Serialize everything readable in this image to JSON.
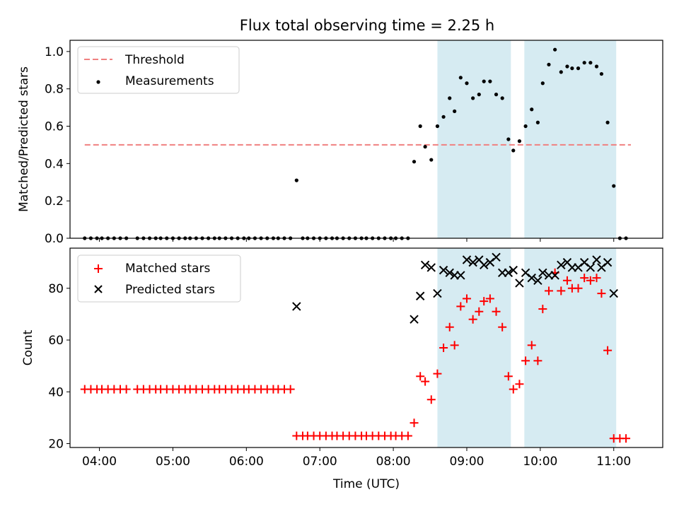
{
  "chart_data": {
    "type": "scatter",
    "title": "Flux total observing time = 2.25 h",
    "xlabel": "Time (UTC)",
    "xlim": [
      "03:36",
      "11:40"
    ],
    "x_ticks": [
      "04:00",
      "05:00",
      "06:00",
      "07:00",
      "08:00",
      "09:00",
      "10:00",
      "11:00"
    ],
    "shaded_intervals": [
      [
        "08:36",
        "09:36"
      ],
      [
        "09:47",
        "11:02"
      ]
    ],
    "shade_color": "#add8e6",
    "panels": [
      {
        "ylabel": "Matched/Predicted stars",
        "ylim": [
          0,
          1.06
        ],
        "y_ticks": [
          "0.0",
          "0.2",
          "0.4",
          "0.6",
          "0.8",
          "1.0"
        ],
        "legend_position": "top-left",
        "threshold": {
          "name": "Threshold",
          "value": 0.5,
          "x_range": [
            "03:48",
            "11:14"
          ],
          "color": "#f08080"
        },
        "series": [
          {
            "name": "Measurements",
            "marker": "dot",
            "color": "#000000",
            "points": [
              [
                "03:48",
                0.0
              ],
              [
                "03:53",
                0.0
              ],
              [
                "03:58",
                0.0
              ],
              [
                "04:02",
                0.0
              ],
              [
                "04:07",
                0.0
              ],
              [
                "04:12",
                0.0
              ],
              [
                "04:17",
                0.0
              ],
              [
                "04:22",
                0.0
              ],
              [
                "04:31",
                0.0
              ],
              [
                "04:36",
                0.0
              ],
              [
                "04:41",
                0.0
              ],
              [
                "04:46",
                0.0
              ],
              [
                "04:50",
                0.0
              ],
              [
                "04:55",
                0.0
              ],
              [
                "05:00",
                0.0
              ],
              [
                "05:05",
                0.0
              ],
              [
                "05:10",
                0.0
              ],
              [
                "05:14",
                0.0
              ],
              [
                "05:19",
                0.0
              ],
              [
                "05:24",
                0.0
              ],
              [
                "05:29",
                0.0
              ],
              [
                "05:34",
                0.0
              ],
              [
                "05:38",
                0.0
              ],
              [
                "05:43",
                0.0
              ],
              [
                "05:48",
                0.0
              ],
              [
                "05:53",
                0.0
              ],
              [
                "05:58",
                0.0
              ],
              [
                "06:02",
                0.0
              ],
              [
                "06:07",
                0.0
              ],
              [
                "06:12",
                0.0
              ],
              [
                "06:17",
                0.0
              ],
              [
                "06:22",
                0.0
              ],
              [
                "06:26",
                0.0
              ],
              [
                "06:31",
                0.0
              ],
              [
                "06:36",
                0.0
              ],
              [
                "06:41",
                0.31
              ],
              [
                "06:46",
                0.0
              ],
              [
                "06:50",
                0.0
              ],
              [
                "06:55",
                0.0
              ],
              [
                "07:00",
                0.0
              ],
              [
                "07:05",
                0.0
              ],
              [
                "07:10",
                0.0
              ],
              [
                "07:14",
                0.0
              ],
              [
                "07:19",
                0.0
              ],
              [
                "07:24",
                0.0
              ],
              [
                "07:29",
                0.0
              ],
              [
                "07:34",
                0.0
              ],
              [
                "07:38",
                0.0
              ],
              [
                "07:43",
                0.0
              ],
              [
                "07:48",
                0.0
              ],
              [
                "07:53",
                0.0
              ],
              [
                "07:58",
                0.0
              ],
              [
                "08:02",
                0.0
              ],
              [
                "08:07",
                0.0
              ],
              [
                "08:12",
                0.0
              ],
              [
                "08:17",
                0.41
              ],
              [
                "08:22",
                0.6
              ],
              [
                "08:26",
                0.49
              ],
              [
                "08:31",
                0.42
              ],
              [
                "08:36",
                0.6
              ],
              [
                "08:41",
                0.65
              ],
              [
                "08:46",
                0.75
              ],
              [
                "08:50",
                0.68
              ],
              [
                "08:55",
                0.86
              ],
              [
                "09:00",
                0.83
              ],
              [
                "09:05",
                0.75
              ],
              [
                "09:10",
                0.77
              ],
              [
                "09:14",
                0.84
              ],
              [
                "09:19",
                0.84
              ],
              [
                "09:24",
                0.77
              ],
              [
                "09:29",
                0.75
              ],
              [
                "09:34",
                0.53
              ],
              [
                "09:38",
                0.47
              ],
              [
                "09:43",
                0.52
              ],
              [
                "09:48",
                0.6
              ],
              [
                "09:53",
                0.69
              ],
              [
                "09:58",
                0.62
              ],
              [
                "10:02",
                0.83
              ],
              [
                "10:07",
                0.93
              ],
              [
                "10:12",
                1.01
              ],
              [
                "10:17",
                0.89
              ],
              [
                "10:22",
                0.92
              ],
              [
                "10:26",
                0.91
              ],
              [
                "10:31",
                0.91
              ],
              [
                "10:36",
                0.94
              ],
              [
                "10:41",
                0.94
              ],
              [
                "10:46",
                0.92
              ],
              [
                "10:50",
                0.88
              ],
              [
                "10:55",
                0.62
              ],
              [
                "11:00",
                0.28
              ],
              [
                "11:05",
                0.0
              ],
              [
                "11:10",
                0.0
              ]
            ]
          }
        ]
      },
      {
        "ylabel": "Count",
        "ylim": [
          18.5,
          95.5
        ],
        "y_ticks": [
          "20",
          "40",
          "60",
          "80"
        ],
        "legend_position": "top-left",
        "series": [
          {
            "name": "Matched stars",
            "marker": "plus",
            "color": "#ff0000",
            "points": [
              [
                "03:48",
                41
              ],
              [
                "03:53",
                41
              ],
              [
                "03:58",
                41
              ],
              [
                "04:02",
                41
              ],
              [
                "04:07",
                41
              ],
              [
                "04:12",
                41
              ],
              [
                "04:17",
                41
              ],
              [
                "04:22",
                41
              ],
              [
                "04:31",
                41
              ],
              [
                "04:36",
                41
              ],
              [
                "04:41",
                41
              ],
              [
                "04:46",
                41
              ],
              [
                "04:50",
                41
              ],
              [
                "04:55",
                41
              ],
              [
                "05:00",
                41
              ],
              [
                "05:05",
                41
              ],
              [
                "05:10",
                41
              ],
              [
                "05:14",
                41
              ],
              [
                "05:19",
                41
              ],
              [
                "05:24",
                41
              ],
              [
                "05:29",
                41
              ],
              [
                "05:34",
                41
              ],
              [
                "05:38",
                41
              ],
              [
                "05:43",
                41
              ],
              [
                "05:48",
                41
              ],
              [
                "05:53",
                41
              ],
              [
                "05:58",
                41
              ],
              [
                "06:02",
                41
              ],
              [
                "06:07",
                41
              ],
              [
                "06:12",
                41
              ],
              [
                "06:17",
                41
              ],
              [
                "06:22",
                41
              ],
              [
                "06:26",
                41
              ],
              [
                "06:31",
                41
              ],
              [
                "06:36",
                41
              ],
              [
                "06:41",
                23
              ],
              [
                "06:46",
                23
              ],
              [
                "06:50",
                23
              ],
              [
                "06:55",
                23
              ],
              [
                "07:00",
                23
              ],
              [
                "07:05",
                23
              ],
              [
                "07:10",
                23
              ],
              [
                "07:14",
                23
              ],
              [
                "07:19",
                23
              ],
              [
                "07:24",
                23
              ],
              [
                "07:29",
                23
              ],
              [
                "07:34",
                23
              ],
              [
                "07:38",
                23
              ],
              [
                "07:43",
                23
              ],
              [
                "07:48",
                23
              ],
              [
                "07:53",
                23
              ],
              [
                "07:58",
                23
              ],
              [
                "08:02",
                23
              ],
              [
                "08:07",
                23
              ],
              [
                "08:12",
                23
              ],
              [
                "08:17",
                28
              ],
              [
                "08:22",
                46
              ],
              [
                "08:26",
                44
              ],
              [
                "08:31",
                37
              ],
              [
                "08:36",
                47
              ],
              [
                "08:41",
                57
              ],
              [
                "08:46",
                65
              ],
              [
                "08:50",
                58
              ],
              [
                "08:55",
                73
              ],
              [
                "09:00",
                76
              ],
              [
                "09:05",
                68
              ],
              [
                "09:10",
                71
              ],
              [
                "09:14",
                75
              ],
              [
                "09:19",
                76
              ],
              [
                "09:24",
                71
              ],
              [
                "09:29",
                65
              ],
              [
                "09:34",
                46
              ],
              [
                "09:38",
                41
              ],
              [
                "09:43",
                43
              ],
              [
                "09:48",
                52
              ],
              [
                "09:53",
                58
              ],
              [
                "09:58",
                52
              ],
              [
                "10:02",
                72
              ],
              [
                "10:07",
                79
              ],
              [
                "10:12",
                86
              ],
              [
                "10:17",
                79
              ],
              [
                "10:22",
                83
              ],
              [
                "10:26",
                80
              ],
              [
                "10:31",
                80
              ],
              [
                "10:36",
                84
              ],
              [
                "10:41",
                83
              ],
              [
                "10:46",
                84
              ],
              [
                "10:50",
                78
              ],
              [
                "10:55",
                56
              ],
              [
                "11:00",
                22
              ],
              [
                "11:05",
                22
              ],
              [
                "11:10",
                22
              ]
            ]
          },
          {
            "name": "Predicted stars",
            "marker": "x",
            "color": "#000000",
            "points": [
              [
                "06:41",
                73
              ],
              [
                "08:17",
                68
              ],
              [
                "08:22",
                77
              ],
              [
                "08:26",
                89
              ],
              [
                "08:31",
                88
              ],
              [
                "08:36",
                78
              ],
              [
                "08:41",
                87
              ],
              [
                "08:46",
                86
              ],
              [
                "08:50",
                85
              ],
              [
                "08:55",
                85
              ],
              [
                "09:00",
                91
              ],
              [
                "09:05",
                90
              ],
              [
                "09:10",
                91
              ],
              [
                "09:14",
                89
              ],
              [
                "09:19",
                90
              ],
              [
                "09:24",
                92
              ],
              [
                "09:29",
                86
              ],
              [
                "09:34",
                86
              ],
              [
                "09:38",
                87
              ],
              [
                "09:43",
                82
              ],
              [
                "09:48",
                86
              ],
              [
                "09:53",
                84
              ],
              [
                "09:58",
                83
              ],
              [
                "10:02",
                86
              ],
              [
                "10:07",
                85
              ],
              [
                "10:12",
                85
              ],
              [
                "10:17",
                89
              ],
              [
                "10:22",
                90
              ],
              [
                "10:26",
                88
              ],
              [
                "10:31",
                88
              ],
              [
                "10:36",
                90
              ],
              [
                "10:41",
                88
              ],
              [
                "10:46",
                91
              ],
              [
                "10:50",
                88
              ],
              [
                "10:55",
                90
              ],
              [
                "11:00",
                78
              ]
            ]
          }
        ]
      }
    ]
  }
}
